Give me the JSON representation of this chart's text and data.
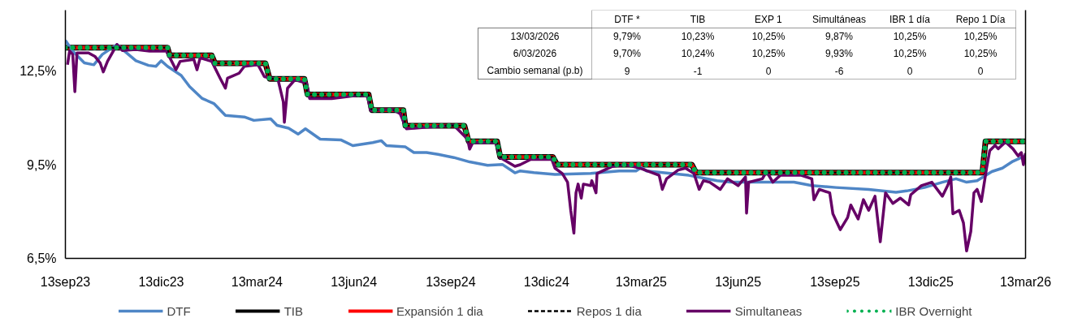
{
  "chart_data": [
    {
      "type": "line",
      "x": [
        "2023-09-13",
        "2023-12-19",
        "2023-12-21",
        "2024-01-30",
        "2024-02-02",
        "2024-03-21",
        "2024-03-25",
        "2024-04-27",
        "2024-04-30",
        "2024-06-27",
        "2024-06-30",
        "2024-07-30",
        "2024-08-01",
        "2024-09-26",
        "2024-09-30",
        "2024-10-27",
        "2024-10-30",
        "2024-12-19",
        "2024-12-23",
        "2025-04-30",
        "2025-05-04",
        "2026-01-31",
        "2026-02-03",
        "2026-03-13"
      ],
      "series": [
        {
          "name": "DTF",
          "color": "#4f86c6",
          "x": [
            "2023-09-13",
            "2023-09-20",
            "2023-10-01",
            "2023-10-10",
            "2023-10-18",
            "2023-11-01",
            "2023-11-08",
            "2023-11-19",
            "2023-12-01",
            "2023-12-08",
            "2023-12-13",
            "2023-12-19",
            "2024-01-01",
            "2024-01-09",
            "2024-01-21",
            "2024-02-01",
            "2024-02-12",
            "2024-03-01",
            "2024-03-10",
            "2024-03-26",
            "2024-04-01",
            "2024-04-12",
            "2024-04-21",
            "2024-04-28",
            "2024-05-12",
            "2024-06-01",
            "2024-06-12",
            "2024-07-01",
            "2024-07-09",
            "2024-07-14",
            "2024-08-01",
            "2024-08-09",
            "2024-08-21",
            "2024-09-01",
            "2024-09-16",
            "2024-10-01",
            "2024-10-18",
            "2024-11-01",
            "2024-11-13",
            "2024-11-18",
            "2024-12-01",
            "2024-12-21",
            "2025-01-24",
            "2025-02-20",
            "2025-03-08",
            "2025-03-13",
            "2025-03-18",
            "2025-04-27",
            "2025-05-24",
            "2025-06-06",
            "2025-07-10",
            "2025-08-05",
            "2025-08-22",
            "2025-09-14",
            "2025-10-15",
            "2025-11-10",
            "2025-11-20",
            "2025-12-07",
            "2025-12-24",
            "2026-01-06",
            "2026-01-16",
            "2026-01-26",
            "2026-02-09",
            "2026-02-19",
            "2026-03-01",
            "2026-03-13"
          ],
          "values": [
            13.48,
            13.14,
            12.76,
            12.7,
            13.03,
            13.35,
            13.14,
            12.83,
            12.68,
            12.65,
            12.83,
            12.65,
            12.36,
            12.0,
            11.62,
            11.46,
            11.08,
            11.03,
            10.92,
            10.97,
            10.76,
            10.67,
            10.48,
            10.65,
            10.32,
            10.29,
            10.11,
            10.21,
            10.27,
            10.11,
            10.07,
            9.89,
            9.89,
            9.83,
            9.73,
            9.59,
            9.48,
            9.51,
            9.24,
            9.3,
            9.25,
            9.19,
            9.22,
            9.3,
            9.3,
            9.41,
            9.3,
            9.16,
            8.99,
            8.94,
            8.94,
            8.94,
            8.83,
            8.77,
            8.71,
            8.62,
            8.66,
            8.77,
            8.94,
            9.05,
            8.94,
            8.99,
            9.28,
            9.39,
            9.61,
            9.79
          ]
        },
        {
          "name": "TIB",
          "color": "#000000",
          "values": [
            13.25,
            13.25,
            13.0,
            13.0,
            12.75,
            12.75,
            12.25,
            12.25,
            11.75,
            11.75,
            11.25,
            11.25,
            10.75,
            10.75,
            10.25,
            10.25,
            9.75,
            9.75,
            9.5,
            9.5,
            9.25,
            9.25,
            10.25,
            10.25
          ]
        },
        {
          "name": "Expansión 1 dia",
          "color": "#ff0000",
          "values": [
            13.25,
            13.25,
            13.0,
            13.0,
            12.75,
            12.75,
            12.25,
            12.25,
            11.75,
            11.75,
            11.25,
            11.25,
            10.75,
            10.75,
            10.25,
            10.25,
            9.75,
            9.75,
            9.5,
            9.5,
            9.25,
            9.25,
            10.25,
            10.25
          ]
        },
        {
          "name": "Repos 1 dia",
          "color": "#000000",
          "line_style": "dashed",
          "values": [
            13.25,
            13.25,
            13.0,
            13.0,
            12.75,
            12.75,
            12.25,
            12.25,
            11.75,
            11.75,
            11.25,
            11.25,
            10.75,
            10.75,
            10.25,
            10.25,
            9.75,
            9.75,
            9.5,
            9.5,
            9.25,
            9.25,
            10.25,
            10.25
          ]
        },
        {
          "name": "Simultaneas",
          "color": "#660066",
          "x": [
            "2023-09-15",
            "2023-09-17",
            "2023-09-20",
            "2023-09-22",
            "2023-09-24",
            "2023-10-05",
            "2023-10-11",
            "2023-10-16",
            "2023-10-19",
            "2023-10-23",
            "2023-11-01",
            "2023-11-06",
            "2023-11-19",
            "2023-12-02",
            "2023-12-18",
            "2023-12-23",
            "2023-12-27",
            "2023-12-31",
            "2024-01-13",
            "2024-01-16",
            "2024-01-19",
            "2024-01-30",
            "2024-02-07",
            "2024-02-12",
            "2024-02-14",
            "2024-02-25",
            "2024-03-01",
            "2024-03-14",
            "2024-03-20",
            "2024-04-02",
            "2024-04-07",
            "2024-04-08",
            "2024-04-11",
            "2024-04-18",
            "2024-04-29",
            "2024-05-02",
            "2024-05-23",
            "2024-06-18",
            "2024-06-26",
            "2024-06-29",
            "2024-07-20",
            "2024-07-27",
            "2024-08-02",
            "2024-08-21",
            "2024-09-16",
            "2024-09-29",
            "2024-10-01",
            "2024-10-04",
            "2024-10-26",
            "2024-10-30",
            "2024-11-13",
            "2024-11-18",
            "2024-11-28",
            "2024-12-18",
            "2024-12-21",
            "2024-12-28",
            "2025-01-02",
            "2025-01-05",
            "2025-01-08",
            "2025-01-10",
            "2025-01-12",
            "2025-01-15",
            "2025-01-17",
            "2025-01-24",
            "2025-01-25",
            "2025-01-29",
            "2025-01-30",
            "2025-02-13",
            "2025-02-26",
            "2025-03-12",
            "2025-03-30",
            "2025-04-02",
            "2025-04-06",
            "2025-04-17",
            "2025-04-24",
            "2025-05-02",
            "2025-05-07",
            "2025-05-11",
            "2025-05-17",
            "2025-05-27",
            "2025-06-03",
            "2025-06-13",
            "2025-06-20",
            "2025-06-21",
            "2025-06-23",
            "2025-07-06",
            "2025-07-10",
            "2025-07-16",
            "2025-07-23",
            "2025-08-12",
            "2025-08-22",
            "2025-08-24",
            "2025-08-29",
            "2025-09-08",
            "2025-09-11",
            "2025-09-18",
            "2025-09-25",
            "2025-09-28",
            "2025-10-05",
            "2025-10-10",
            "2025-10-15",
            "2025-10-21",
            "2025-10-26",
            "2025-10-31",
            "2025-11-07",
            "2025-11-14",
            "2025-11-22",
            "2025-11-24",
            "2025-12-04",
            "2025-12-14",
            "2025-12-24",
            "2025-12-29",
            "2026-01-01",
            "2026-01-03",
            "2026-01-09",
            "2026-01-13",
            "2026-01-16",
            "2026-01-20",
            "2026-01-23",
            "2026-01-26",
            "2026-01-30",
            "2026-02-04",
            "2026-02-07",
            "2026-02-12",
            "2026-02-15",
            "2026-02-22",
            "2026-03-01",
            "2026-03-06",
            "2026-03-09",
            "2026-03-11",
            "2026-03-13"
          ],
          "values": [
            12.7,
            13.14,
            13.03,
            11.84,
            13.08,
            13.08,
            12.97,
            12.76,
            12.47,
            12.81,
            13.35,
            13.16,
            13.19,
            13.14,
            13.14,
            12.81,
            12.54,
            12.81,
            12.87,
            12.54,
            12.92,
            12.81,
            12.27,
            11.95,
            12.27,
            12.43,
            12.65,
            12.7,
            12.32,
            12.22,
            11.51,
            10.86,
            11.95,
            12.22,
            12.11,
            11.62,
            11.62,
            11.73,
            11.69,
            11.24,
            11.27,
            11.13,
            10.65,
            10.7,
            10.76,
            10.32,
            10.0,
            10.21,
            10.21,
            9.73,
            9.45,
            9.5,
            9.67,
            9.67,
            9.39,
            9.22,
            8.94,
            8.04,
            7.31,
            8.6,
            8.88,
            8.43,
            8.88,
            8.83,
            8.99,
            8.6,
            9.22,
            9.44,
            9.5,
            9.39,
            9.16,
            8.71,
            9.05,
            9.33,
            9.39,
            9.22,
            8.71,
            8.99,
            8.94,
            8.71,
            9.05,
            8.83,
            9.11,
            7.95,
            8.94,
            9.05,
            9.28,
            8.94,
            9.16,
            9.16,
            9.05,
            8.38,
            8.71,
            8.6,
            7.93,
            7.42,
            7.81,
            8.21,
            7.76,
            8.38,
            8.04,
            8.49,
            7.03,
            8.6,
            8.26,
            8.43,
            8.21,
            8.54,
            8.83,
            8.94,
            8.49,
            8.83,
            9.11,
            7.93,
            8.04,
            7.64,
            6.74,
            7.36,
            8.6,
            8.71,
            8.32,
            9.39,
            9.95,
            10.12,
            10.01,
            10.23,
            10.01,
            9.78,
            9.89,
            9.5,
            9.87
          ]
        },
        {
          "name": "IBR Overnight",
          "color": "#00b050",
          "line_style": "dotted",
          "values": [
            13.25,
            13.25,
            13.0,
            13.0,
            12.75,
            12.75,
            12.25,
            12.25,
            11.75,
            11.75,
            11.25,
            11.25,
            10.75,
            10.75,
            10.25,
            10.25,
            9.75,
            9.75,
            9.5,
            9.5,
            9.25,
            9.25,
            10.25,
            10.25
          ]
        }
      ],
      "xlim": [
        "2023-09-13",
        "2026-03-13"
      ],
      "xticks": [
        {
          "value": "2023-09-13",
          "label": "13sep23"
        },
        {
          "value": "2023-12-13",
          "label": "13dic23"
        },
        {
          "value": "2024-03-13",
          "label": "13mar24"
        },
        {
          "value": "2024-06-13",
          "label": "13jun24"
        },
        {
          "value": "2024-09-13",
          "label": "13sep24"
        },
        {
          "value": "2024-12-13",
          "label": "13dic24"
        },
        {
          "value": "2025-03-13",
          "label": "13mar25"
        },
        {
          "value": "2025-06-13",
          "label": "13jun25"
        },
        {
          "value": "2025-09-13",
          "label": "13sep25"
        },
        {
          "value": "2025-12-13",
          "label": "13dic25"
        },
        {
          "value": "2026-03-13",
          "label": "13mar26"
        }
      ],
      "ylim": [
        6.5,
        14.45
      ],
      "yticks": [
        {
          "value": 6.5,
          "label": "6,5%"
        },
        {
          "value": 9.5,
          "label": "9,5%"
        },
        {
          "value": 12.5,
          "label": "12,5%"
        }
      ],
      "legend": "bottom"
    },
    {
      "type": "other",
      "categories": [
        "DTF *",
        "TIB",
        "EXP 1",
        "Simultáneas",
        "IBR 1 día",
        "Repo 1 Día"
      ],
      "y_categories": [
        "13/03/2026",
        "6/03/2026",
        "Cambio semanal (p.b)"
      ],
      "cell_labels": [
        [
          "9,79%",
          "10,23%",
          "10,25%",
          "9,87%",
          "10,25%",
          "10,25%"
        ],
        [
          "9,70%",
          "10,24%",
          "10,25%",
          "9,93%",
          "10,25%",
          "10,25%"
        ],
        [
          "9",
          "-1",
          "0",
          "-6",
          "0",
          "0"
        ]
      ]
    }
  ]
}
